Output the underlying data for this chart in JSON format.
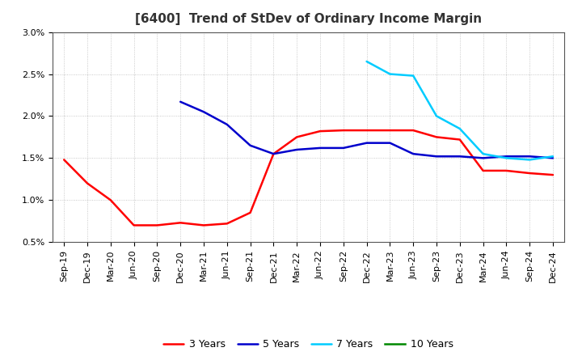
{
  "title": "[6400]  Trend of StDev of Ordinary Income Margin",
  "x_labels": [
    "Sep-19",
    "Dec-19",
    "Mar-20",
    "Jun-20",
    "Sep-20",
    "Dec-20",
    "Mar-21",
    "Jun-21",
    "Sep-21",
    "Dec-21",
    "Mar-22",
    "Jun-22",
    "Sep-22",
    "Dec-22",
    "Mar-23",
    "Jun-23",
    "Sep-23",
    "Dec-23",
    "Mar-24",
    "Jun-24",
    "Sep-24",
    "Dec-24"
  ],
  "y_min": 0.005,
  "y_max": 0.03,
  "y_ticks": [
    0.005,
    0.01,
    0.015,
    0.02,
    0.025,
    0.03
  ],
  "y_tick_labels": [
    "0.5%",
    "1.0%",
    "1.5%",
    "2.0%",
    "2.5%",
    "3.0%"
  ],
  "series": {
    "3 Years": {
      "color": "#FF0000",
      "linewidth": 1.8,
      "data_x": [
        0,
        1,
        2,
        3,
        4,
        5,
        6,
        7,
        8,
        9,
        10,
        11,
        12,
        13,
        14,
        15,
        16,
        17,
        18,
        19,
        20,
        21
      ],
      "data_y": [
        0.0148,
        0.012,
        0.01,
        0.007,
        0.007,
        0.0073,
        0.007,
        0.0072,
        0.0085,
        0.0155,
        0.0175,
        0.0182,
        0.0183,
        0.0183,
        0.0183,
        0.0183,
        0.0175,
        0.0172,
        0.0135,
        0.0135,
        0.0132,
        0.013
      ]
    },
    "5 Years": {
      "color": "#0000CC",
      "linewidth": 1.8,
      "data_x": [
        5,
        6,
        7,
        8,
        9,
        10,
        11,
        12,
        13,
        14,
        15,
        16,
        17,
        18,
        19,
        20,
        21
      ],
      "data_y": [
        0.0217,
        0.0205,
        0.019,
        0.0165,
        0.0155,
        0.016,
        0.0162,
        0.0162,
        0.0168,
        0.0168,
        0.0155,
        0.0152,
        0.0152,
        0.015,
        0.0152,
        0.0152,
        0.015
      ]
    },
    "7 Years": {
      "color": "#00CCFF",
      "linewidth": 1.8,
      "data_x": [
        13,
        14,
        15,
        16,
        17,
        18,
        19,
        20,
        21
      ],
      "data_y": [
        0.0265,
        0.025,
        0.0248,
        0.02,
        0.0185,
        0.0155,
        0.015,
        0.0148,
        0.0152
      ]
    },
    "10 Years": {
      "color": "#008800",
      "linewidth": 1.8,
      "data_x": [],
      "data_y": []
    }
  },
  "background_color": "#FFFFFF",
  "plot_bg_color": "#FFFFFF",
  "grid_color": "#AAAAAA",
  "legend_ncol": 4,
  "title_fontsize": 11,
  "tick_fontsize": 8,
  "legend_fontsize": 9
}
